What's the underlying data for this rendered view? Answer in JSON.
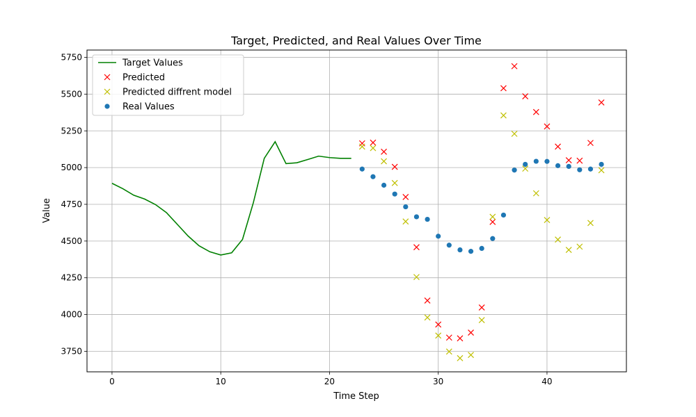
{
  "chart_data": {
    "type": "line",
    "title": "Target, Predicted, and Real Values Over Time",
    "xlabel": "Time Step",
    "ylabel": "Value",
    "xlim": [
      -2.3,
      47.3
    ],
    "ylim": [
      3610,
      5800
    ],
    "xticks": [
      0,
      10,
      20,
      30,
      40
    ],
    "yticks": [
      3750,
      4000,
      4250,
      4500,
      4750,
      5000,
      5250,
      5500,
      5750
    ],
    "grid": true,
    "legend_position": "top-left",
    "series": [
      {
        "name": "Target Values",
        "kind": "line",
        "color": "#008000",
        "points": [
          [
            0,
            4893
          ],
          [
            1,
            4856
          ],
          [
            2,
            4812
          ],
          [
            3,
            4786
          ],
          [
            4,
            4748
          ],
          [
            5,
            4694
          ],
          [
            6,
            4614
          ],
          [
            7,
            4534
          ],
          [
            8,
            4468
          ],
          [
            9,
            4427
          ],
          [
            10,
            4405
          ],
          [
            11,
            4420
          ],
          [
            12,
            4511
          ],
          [
            13,
            4762
          ],
          [
            14,
            5063
          ],
          [
            15,
            5176
          ],
          [
            16,
            5027
          ],
          [
            17,
            5033
          ],
          [
            18,
            5055
          ],
          [
            19,
            5078
          ],
          [
            20,
            5068
          ],
          [
            21,
            5063
          ],
          [
            22,
            5063
          ]
        ]
      },
      {
        "name": "Predicted",
        "kind": "x-marker",
        "color": "#ff0000",
        "points": [
          [
            23,
            5165
          ],
          [
            24,
            5170
          ],
          [
            25,
            5108
          ],
          [
            26,
            5005
          ],
          [
            27,
            4800
          ],
          [
            28,
            4458
          ],
          [
            29,
            4095
          ],
          [
            30,
            3932
          ],
          [
            31,
            3843
          ],
          [
            32,
            3838
          ],
          [
            33,
            3877
          ],
          [
            34,
            4048
          ],
          [
            35,
            4630
          ],
          [
            36,
            5540
          ],
          [
            37,
            5690
          ],
          [
            38,
            5485
          ],
          [
            39,
            5378
          ],
          [
            40,
            5280
          ],
          [
            41,
            5143
          ],
          [
            42,
            5050
          ],
          [
            43,
            5047
          ],
          [
            44,
            5168
          ],
          [
            45,
            5443
          ]
        ]
      },
      {
        "name": "Predicted diffrent model",
        "kind": "x-marker",
        "color": "#bfbf00",
        "points": [
          [
            23,
            5143
          ],
          [
            24,
            5133
          ],
          [
            25,
            5043
          ],
          [
            26,
            4895
          ],
          [
            27,
            4633
          ],
          [
            28,
            4255
          ],
          [
            29,
            3980
          ],
          [
            30,
            3857
          ],
          [
            31,
            3748
          ],
          [
            32,
            3703
          ],
          [
            33,
            3725
          ],
          [
            34,
            3962
          ],
          [
            35,
            4665
          ],
          [
            36,
            5355
          ],
          [
            37,
            5230
          ],
          [
            38,
            4993
          ],
          [
            39,
            4825
          ],
          [
            40,
            4643
          ],
          [
            41,
            4510
          ],
          [
            42,
            4440
          ],
          [
            43,
            4462
          ],
          [
            44,
            4623
          ],
          [
            45,
            4982
          ]
        ]
      },
      {
        "name": "Real Values",
        "kind": "dot-marker",
        "color": "#1f77b4",
        "points": [
          [
            23,
            4990
          ],
          [
            24,
            4938
          ],
          [
            25,
            4880
          ],
          [
            26,
            4820
          ],
          [
            27,
            4733
          ],
          [
            28,
            4665
          ],
          [
            29,
            4648
          ],
          [
            30,
            4533
          ],
          [
            31,
            4472
          ],
          [
            32,
            4440
          ],
          [
            33,
            4430
          ],
          [
            34,
            4450
          ],
          [
            35,
            4517
          ],
          [
            36,
            4677
          ],
          [
            37,
            4983
          ],
          [
            38,
            5022
          ],
          [
            39,
            5043
          ],
          [
            40,
            5042
          ],
          [
            41,
            5013
          ],
          [
            42,
            5008
          ],
          [
            43,
            4985
          ],
          [
            44,
            4990
          ],
          [
            45,
            5022
          ]
        ]
      }
    ]
  }
}
